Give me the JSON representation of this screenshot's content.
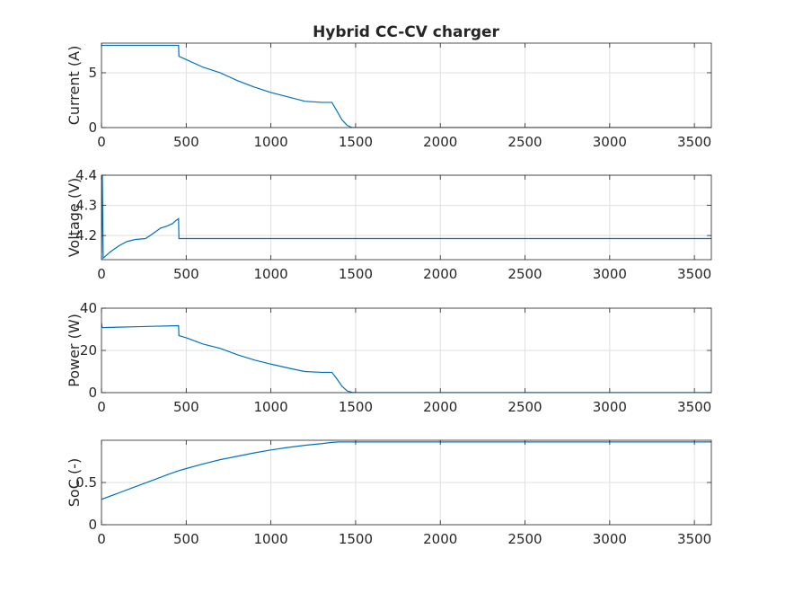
{
  "title": "Hybrid CC-CV charger",
  "colors": {
    "line": "#0072bd",
    "grid": "#dfdfdf",
    "axis": "#262626",
    "background": "#ffffff"
  },
  "chart_data": [
    {
      "type": "line",
      "title": "Hybrid CC-CV charger",
      "xlabel": "",
      "ylabel": "Current (A)",
      "xlim": [
        0,
        3600
      ],
      "ylim": [
        0,
        7.7
      ],
      "xticks": [
        0,
        500,
        1000,
        1500,
        2000,
        2500,
        3000,
        3500
      ],
      "yticks": [
        0,
        5
      ],
      "grid": true,
      "x": [
        0,
        455,
        457,
        500,
        600,
        700,
        800,
        900,
        1000,
        1100,
        1200,
        1300,
        1360,
        1390,
        1420,
        1450,
        1480,
        1500,
        3600
      ],
      "y": [
        7.5,
        7.5,
        6.5,
        6.2,
        5.5,
        5.0,
        4.3,
        3.7,
        3.2,
        2.8,
        2.4,
        2.3,
        2.3,
        1.5,
        0.7,
        0.2,
        0.0,
        0.0,
        0.0
      ]
    },
    {
      "type": "line",
      "xlabel": "",
      "ylabel": "Voltage (V)",
      "xlim": [
        0,
        3600
      ],
      "ylim": [
        4.12,
        4.4
      ],
      "xticks": [
        0,
        500,
        1000,
        1500,
        2000,
        2500,
        3000,
        3500
      ],
      "yticks": [
        4.2,
        4.3,
        4.4
      ],
      "grid": true,
      "x": [
        0,
        5,
        10,
        50,
        100,
        150,
        200,
        260,
        300,
        350,
        390,
        420,
        440,
        455,
        457,
        500,
        1000,
        2000,
        3600
      ],
      "y": [
        4.14,
        4.4,
        4.125,
        4.145,
        4.165,
        4.18,
        4.187,
        4.19,
        4.205,
        4.225,
        4.232,
        4.24,
        4.25,
        4.256,
        4.19,
        4.19,
        4.19,
        4.19,
        4.19
      ]
    },
    {
      "type": "line",
      "xlabel": "",
      "ylabel": "Power (W)",
      "xlim": [
        0,
        3600
      ],
      "ylim": [
        0,
        40
      ],
      "xticks": [
        0,
        500,
        1000,
        1500,
        2000,
        2500,
        3000,
        3500
      ],
      "yticks": [
        0,
        20,
        40
      ],
      "grid": true,
      "x": [
        0,
        3,
        10,
        100,
        200,
        300,
        400,
        455,
        457,
        500,
        600,
        700,
        800,
        900,
        1000,
        1100,
        1200,
        1300,
        1360,
        1390,
        1420,
        1450,
        1480,
        1500,
        3600
      ],
      "y": [
        33,
        31,
        30.8,
        31,
        31.2,
        31.4,
        31.6,
        31.7,
        27,
        26,
        23,
        21,
        18,
        15.5,
        13.5,
        11.7,
        10,
        9.6,
        9.6,
        6.5,
        3,
        0.8,
        0.1,
        0,
        0
      ]
    },
    {
      "type": "line",
      "xlabel": "",
      "ylabel": "SoC (-)",
      "xlim": [
        0,
        3600
      ],
      "ylim": [
        0,
        1.0
      ],
      "xticks": [
        0,
        500,
        1000,
        1500,
        2000,
        2500,
        3000,
        3500
      ],
      "yticks": [
        0,
        0.5
      ],
      "grid": true,
      "x": [
        0,
        100,
        200,
        300,
        400,
        457,
        500,
        600,
        700,
        800,
        900,
        1000,
        1100,
        1200,
        1300,
        1360,
        1400,
        3600
      ],
      "y": [
        0.3,
        0.375,
        0.45,
        0.525,
        0.6,
        0.64,
        0.665,
        0.72,
        0.77,
        0.81,
        0.85,
        0.885,
        0.915,
        0.94,
        0.96,
        0.975,
        0.98,
        0.98
      ]
    }
  ]
}
